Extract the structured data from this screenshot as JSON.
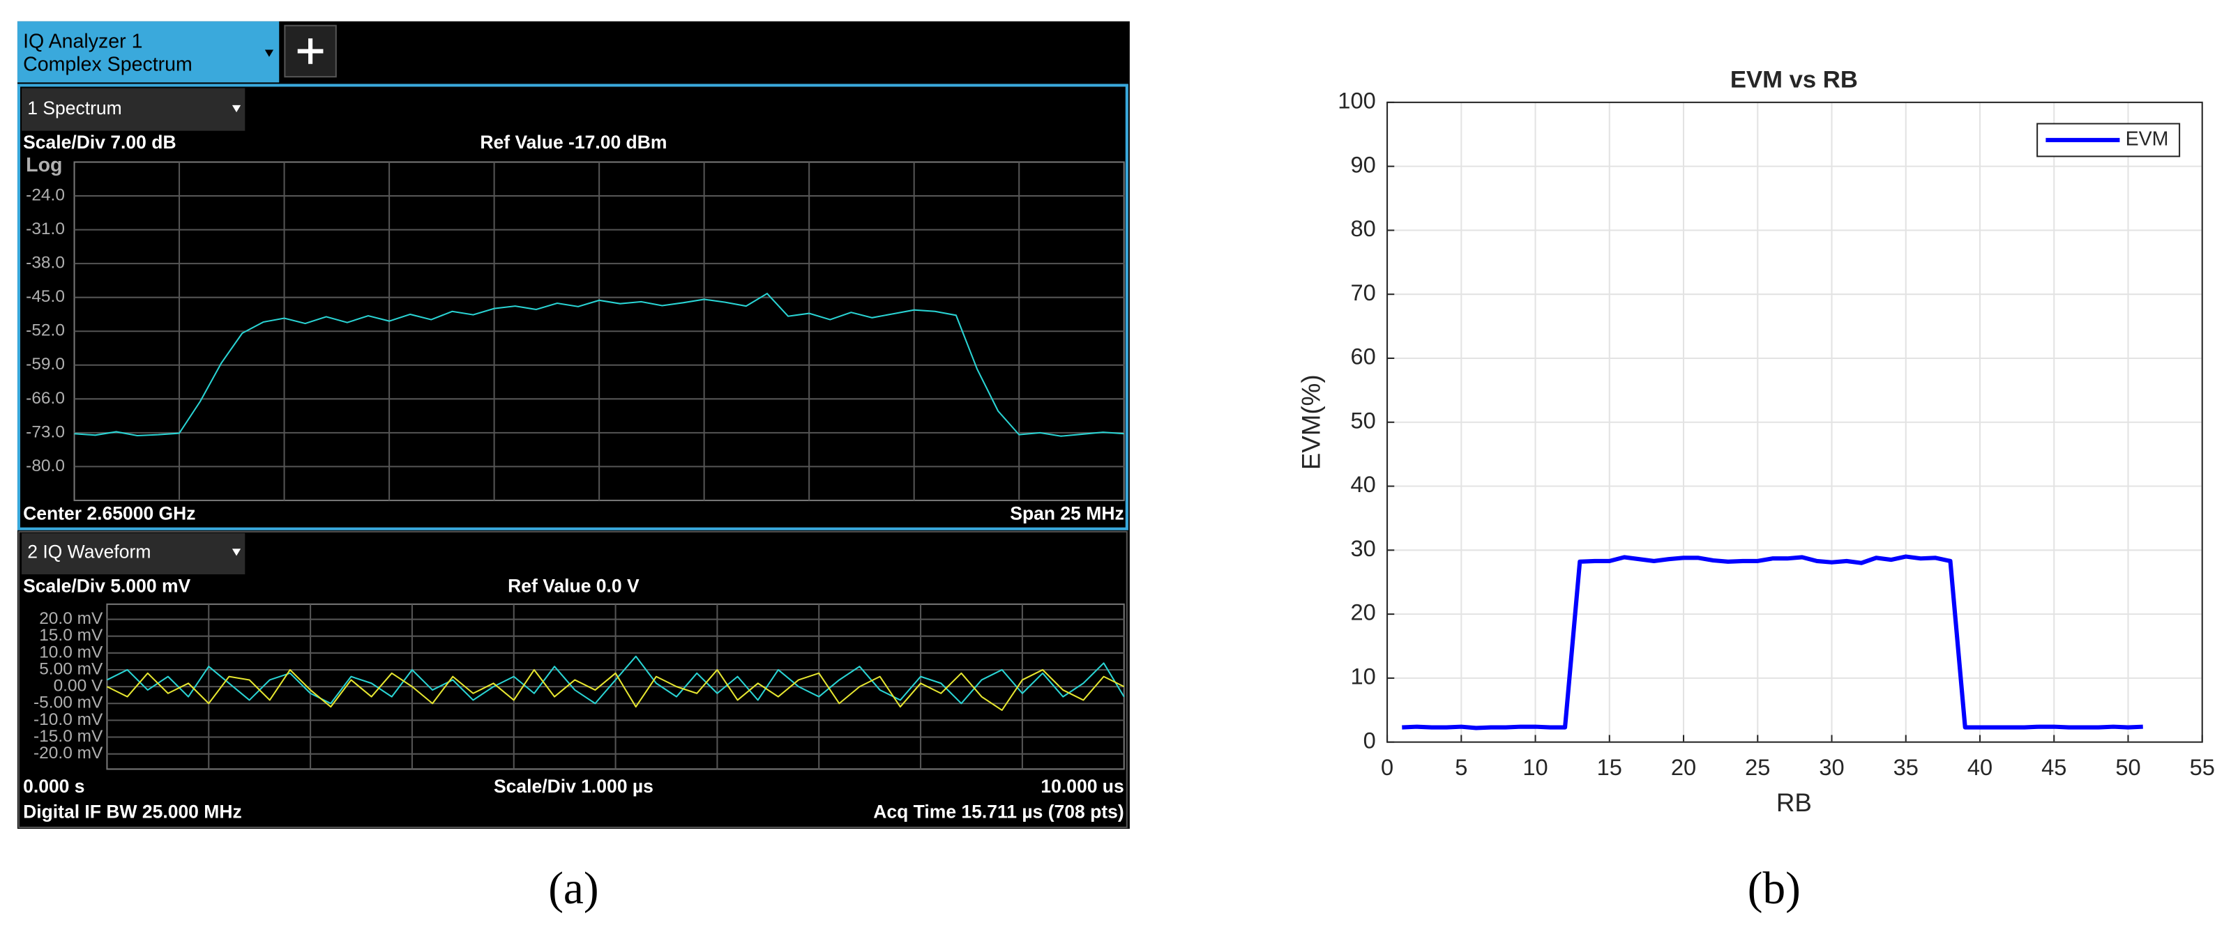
{
  "figure": {
    "panel_labels": [
      "(a)",
      "(b)"
    ]
  },
  "instrument": {
    "tab_title": "IQ Analyzer 1",
    "tab_subtitle": "Complex Spectrum"
  },
  "chart_data": [
    {
      "type": "line",
      "window_title": "1 Spectrum",
      "scale_label": "Scale/Div 7.00 dB",
      "ref_label": "Ref Value -17.00 dBm",
      "scale_type_label": "Log",
      "footer_left": "Center 2.65000 GHz",
      "footer_right": "Span 25 MHz",
      "color": "#2ad4d4",
      "xlim": [
        2637.5,
        2662.5
      ],
      "ylim": [
        -87,
        -17
      ],
      "yticks": [
        {
          "value": -24,
          "label": "-24.0"
        },
        {
          "value": -31,
          "label": "-31.0"
        },
        {
          "value": -38,
          "label": "-38.0"
        },
        {
          "value": -45,
          "label": "-45.0"
        },
        {
          "value": -52,
          "label": "-52.0"
        },
        {
          "value": -59,
          "label": "-59.0"
        },
        {
          "value": -66,
          "label": "-66.0"
        },
        {
          "value": -73,
          "label": "-73.0"
        },
        {
          "value": -80,
          "label": "-80.0"
        }
      ],
      "grid": true,
      "x": [
        2637.5,
        2638.0,
        2638.5,
        2639.0,
        2639.5,
        2640.0,
        2640.5,
        2641.0,
        2641.5,
        2642.0,
        2642.5,
        2643.0,
        2643.5,
        2644.0,
        2644.5,
        2645.0,
        2645.5,
        2646.0,
        2646.5,
        2647.0,
        2647.5,
        2648.0,
        2648.5,
        2649.0,
        2649.5,
        2650.0,
        2650.5,
        2651.0,
        2651.5,
        2652.0,
        2652.5,
        2653.0,
        2653.5,
        2654.0,
        2654.5,
        2655.0,
        2655.5,
        2656.0,
        2656.5,
        2657.0,
        2657.5,
        2658.0,
        2658.5,
        2659.0,
        2659.5,
        2660.0,
        2660.5,
        2661.0,
        2661.5,
        2662.0,
        2662.5
      ],
      "values": [
        -73.2,
        -73.5,
        -72.8,
        -73.6,
        -73.4,
        -73.1,
        -66.5,
        -58.6,
        -52.4,
        -50.1,
        -49.3,
        -50.4,
        -49.0,
        -50.2,
        -48.8,
        -49.9,
        -48.5,
        -49.6,
        -47.9,
        -48.6,
        -47.3,
        -46.8,
        -47.5,
        -46.2,
        -46.9,
        -45.6,
        -46.3,
        -45.9,
        -46.7,
        -46.1,
        -45.4,
        -46.0,
        -46.8,
        -44.2,
        -48.9,
        -48.3,
        -49.6,
        -48.1,
        -49.2,
        -48.4,
        -47.6,
        -47.9,
        -48.7,
        -59.8,
        -68.5,
        -73.4,
        -73.0,
        -73.7,
        -73.3,
        -72.9,
        -73.2
      ]
    },
    {
      "type": "line",
      "window_title": "2 IQ Waveform",
      "scale_label": "Scale/Div 5.000 mV",
      "ref_label": "Ref Value 0.0 V",
      "x_start_label": "0.000 s",
      "x_scale_label": "Scale/Div 1.000 µs",
      "x_end_label": "10.000 us",
      "footer_left": "Digital IF BW 25.000 MHz",
      "footer_right": "Acq Time 15.711 µs (708 pts)",
      "xlim": [
        0,
        10
      ],
      "ylim": [
        -24.5,
        24.5
      ],
      "yticks": [
        {
          "value": 20,
          "label": "20.0 mV"
        },
        {
          "value": 15,
          "label": "15.0 mV"
        },
        {
          "value": 10,
          "label": "10.0 mV"
        },
        {
          "value": 5,
          "label": "5.00 mV"
        },
        {
          "value": 0,
          "label": "0.00 V"
        },
        {
          "value": -5,
          "label": "-5.00 mV"
        },
        {
          "value": -10,
          "label": "-10.0 mV"
        },
        {
          "value": -15,
          "label": "-15.0 mV"
        },
        {
          "value": -20,
          "label": "-20.0 mV"
        }
      ],
      "grid": true,
      "x": [
        0,
        0.2,
        0.4,
        0.6,
        0.8,
        1.0,
        1.2,
        1.4,
        1.6,
        1.8,
        2.0,
        2.2,
        2.4,
        2.6,
        2.8,
        3.0,
        3.2,
        3.4,
        3.6,
        3.8,
        4.0,
        4.2,
        4.4,
        4.6,
        4.8,
        5.0,
        5.2,
        5.4,
        5.6,
        5.8,
        6.0,
        6.2,
        6.4,
        6.6,
        6.8,
        7.0,
        7.2,
        7.4,
        7.6,
        7.8,
        8.0,
        8.2,
        8.4,
        8.6,
        8.8,
        9.0,
        9.2,
        9.4,
        9.6,
        9.8,
        10.0
      ],
      "series": [
        {
          "color": "#2ad4d4",
          "values": [
            2,
            5,
            -1,
            3,
            -3,
            6,
            1,
            -4,
            2,
            4,
            -2,
            -5,
            3,
            1,
            -3,
            5,
            -1,
            2,
            -4,
            0,
            3,
            -2,
            6,
            -1,
            -5,
            2,
            9,
            1,
            -3,
            4,
            -2,
            3,
            -4,
            5,
            0,
            -3,
            2,
            6,
            -1,
            -4,
            3,
            1,
            -5,
            2,
            5,
            -2,
            4,
            -3,
            1,
            7,
            -3
          ]
        },
        {
          "color": "#e6e630",
          "values": [
            0,
            -3,
            4,
            -2,
            1,
            -5,
            3,
            2,
            -4,
            5,
            -1,
            -6,
            2,
            -3,
            4,
            0,
            -5,
            3,
            -2,
            1,
            -4,
            5,
            -3,
            2,
            -1,
            4,
            -6,
            3,
            0,
            -2,
            5,
            -4,
            1,
            -3,
            2,
            4,
            -5,
            0,
            3,
            -6,
            1,
            -2,
            4,
            -3,
            -7,
            2,
            5,
            -1,
            -4,
            3,
            0
          ]
        }
      ]
    },
    {
      "type": "line",
      "title": "EVM vs RB",
      "xlabel": "RB",
      "ylabel": "EVM(%)",
      "xlim": [
        0,
        55
      ],
      "xticks": [
        0,
        5,
        10,
        15,
        20,
        25,
        30,
        35,
        40,
        45,
        50,
        55
      ],
      "ylim": [
        0,
        100
      ],
      "yticks": [
        0,
        10,
        20,
        30,
        40,
        50,
        60,
        70,
        80,
        90,
        100
      ],
      "grid": true,
      "legend": "northeast",
      "series": [
        {
          "name": "EVM",
          "color": "#0000ff",
          "x": [
            1,
            2,
            3,
            4,
            5,
            6,
            7,
            8,
            9,
            10,
            11,
            12,
            13,
            14,
            15,
            16,
            17,
            18,
            19,
            20,
            21,
            22,
            23,
            24,
            25,
            26,
            27,
            28,
            29,
            30,
            31,
            32,
            33,
            34,
            35,
            36,
            37,
            38,
            39,
            40,
            41,
            42,
            43,
            44,
            45,
            46,
            47,
            48,
            49,
            50,
            51
          ],
          "values": [
            2.3,
            2.4,
            2.3,
            2.3,
            2.4,
            2.2,
            2.3,
            2.3,
            2.4,
            2.4,
            2.3,
            2.3,
            28.2,
            28.3,
            28.3,
            28.9,
            28.6,
            28.3,
            28.6,
            28.8,
            28.8,
            28.4,
            28.2,
            28.3,
            28.3,
            28.7,
            28.7,
            28.9,
            28.3,
            28.1,
            28.3,
            28.0,
            28.8,
            28.5,
            29.0,
            28.7,
            28.8,
            28.3,
            2.3,
            2.3,
            2.3,
            2.3,
            2.3,
            2.4,
            2.4,
            2.3,
            2.3,
            2.3,
            2.4,
            2.3,
            2.4
          ]
        }
      ]
    }
  ]
}
